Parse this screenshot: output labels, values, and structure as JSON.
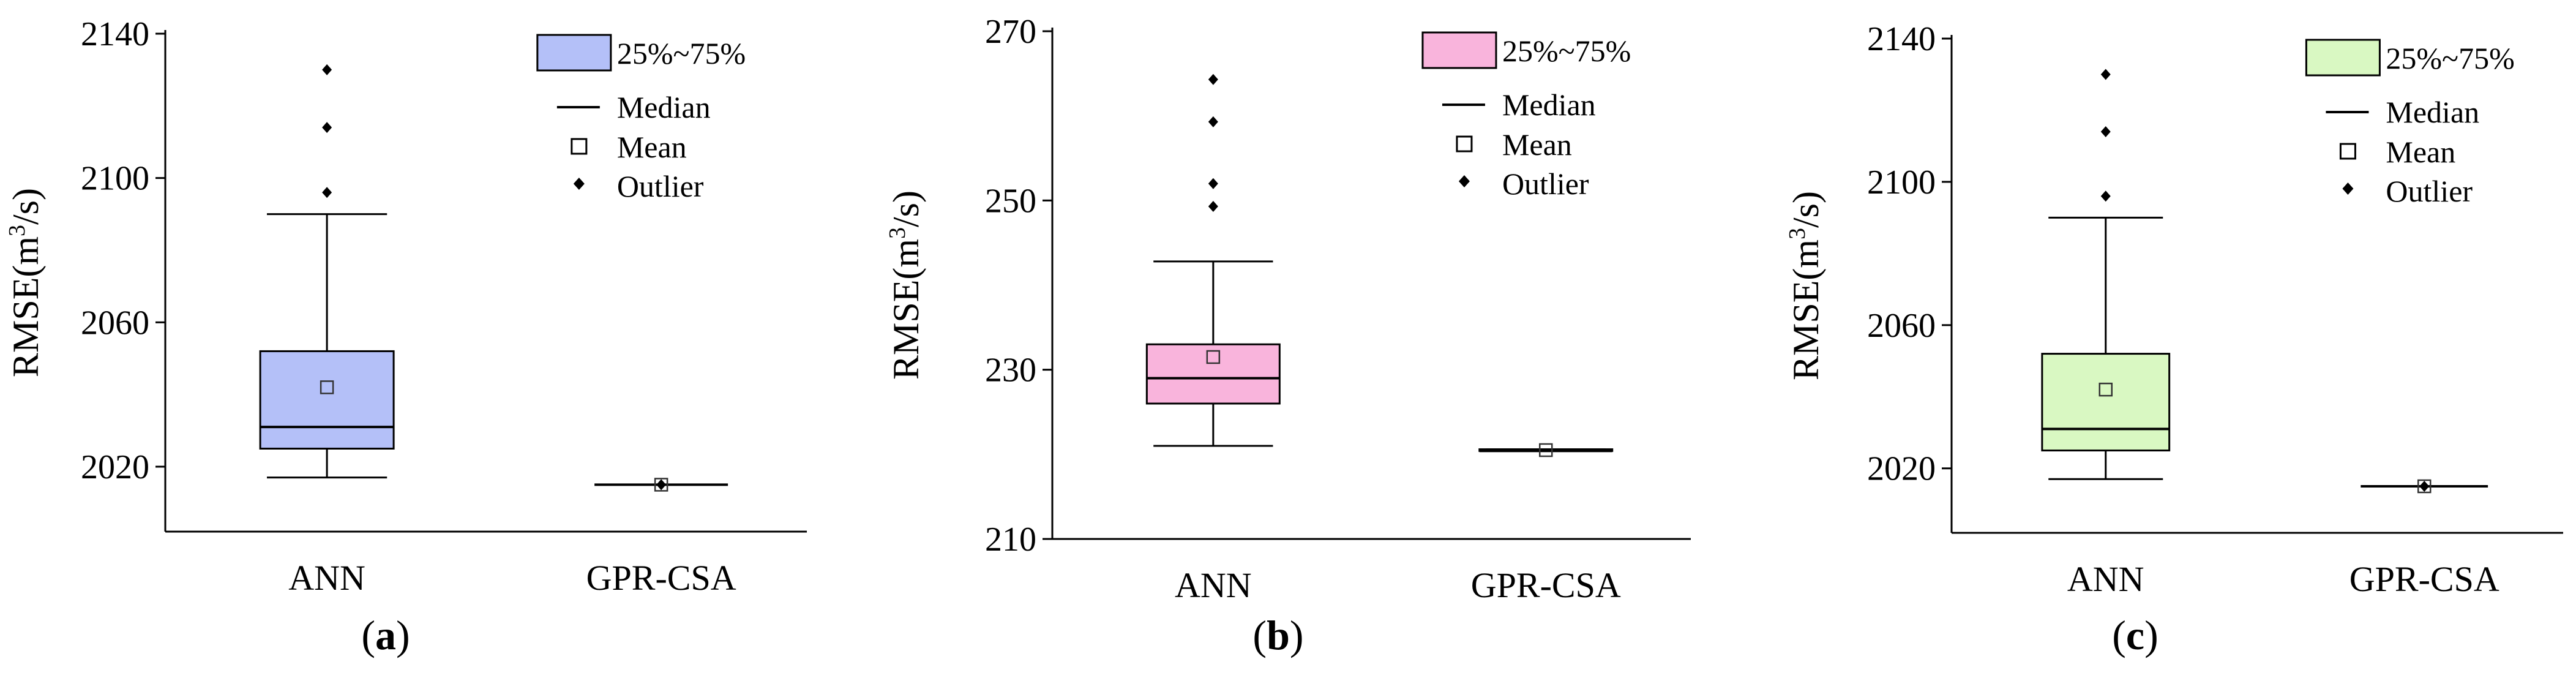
{
  "chart_data": [
    {
      "type": "box",
      "panel_label": "a",
      "ylabel": "RMSE(m³/s)",
      "ylabel_parts": {
        "main": "RMSE(m",
        "sup": "3",
        "tail": "/s)"
      },
      "ylim": [
        2002,
        2140
      ],
      "yticks": [
        2020,
        2060,
        2100,
        2140
      ],
      "box_color": "#b4c0f8",
      "categories": [
        "ANN",
        "GPR-CSA"
      ],
      "boxes": [
        {
          "category": "ANN",
          "whisker_low": 2017,
          "q1": 2025,
          "median": 2031,
          "q3": 2052,
          "whisker_high": 2090,
          "mean": 2042,
          "outliers": [
            2096,
            2114,
            2130
          ]
        },
        {
          "category": "GPR-CSA",
          "whisker_low": 2015,
          "q1": 2015,
          "median": 2015,
          "q3": 2015,
          "whisker_high": 2015,
          "mean": 2015,
          "outliers": [
            2015
          ]
        }
      ],
      "legend": [
        "25%~75%",
        "Median",
        "Mean",
        "Outlier"
      ]
    },
    {
      "type": "box",
      "panel_label": "b",
      "ylabel": "RMSE(m³/s)",
      "ylabel_parts": {
        "main": "RMSE(m",
        "sup": "3",
        "tail": "/s)"
      },
      "ylim": [
        210,
        270
      ],
      "yticks": [
        210,
        230,
        250,
        270
      ],
      "box_color": "#f9b4dc",
      "categories": [
        "ANN",
        "GPR-CSA"
      ],
      "boxes": [
        {
          "category": "ANN",
          "whisker_low": 221,
          "q1": 226,
          "median": 229,
          "q3": 233,
          "whisker_high": 242.8,
          "mean": 231.5,
          "outliers": [
            249.3,
            252,
            259.3,
            264.3
          ]
        },
        {
          "category": "GPR-CSA",
          "whisker_low": 220.4,
          "q1": 220.4,
          "median": 220.4,
          "q3": 220.6,
          "whisker_high": 220.6,
          "mean": 220.5,
          "outliers": []
        }
      ],
      "legend": [
        "25%~75%",
        "Median",
        "Mean",
        "Outlier"
      ]
    },
    {
      "type": "box",
      "panel_label": "c",
      "ylabel": "RMSE(m³/s)",
      "ylabel_parts": {
        "main": "RMSE(m",
        "sup": "3",
        "tail": "/s)"
      },
      "ylim": [
        2002,
        2140
      ],
      "yticks": [
        2020,
        2060,
        2100,
        2140
      ],
      "box_color": "#d9f8c2",
      "categories": [
        "ANN",
        "GPR-CSA"
      ],
      "boxes": [
        {
          "category": "ANN",
          "whisker_low": 2017,
          "q1": 2025,
          "median": 2031,
          "q3": 2052,
          "whisker_high": 2090,
          "mean": 2042,
          "outliers": [
            2096,
            2114,
            2130
          ]
        },
        {
          "category": "GPR-CSA",
          "whisker_low": 2015,
          "q1": 2015,
          "median": 2015,
          "q3": 2015,
          "whisker_high": 2015,
          "mean": 2015,
          "outliers": [
            2015
          ]
        }
      ],
      "legend": [
        "25%~75%",
        "Median",
        "Mean",
        "Outlier"
      ]
    }
  ]
}
